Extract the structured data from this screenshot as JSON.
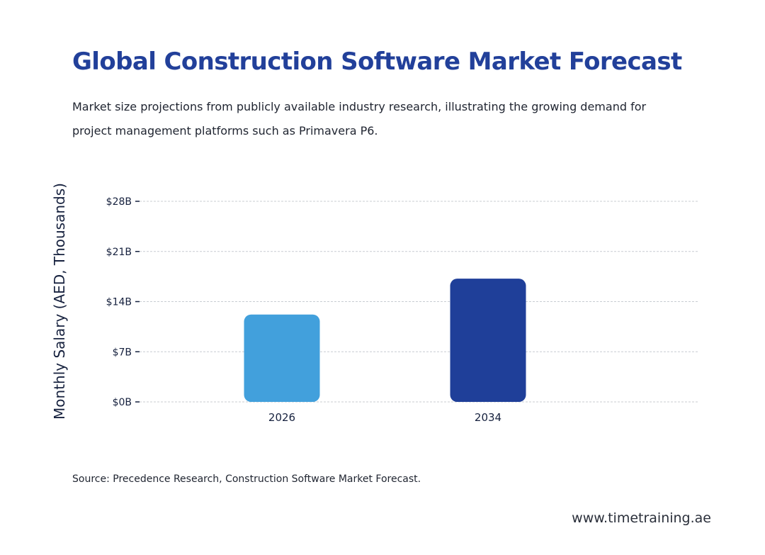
{
  "header": {
    "title": "Global Construction Software Market Forecast",
    "subtitle": "Market size projections from publicly available industry research, illustrating the growing demand for project management platforms such as Primavera P6."
  },
  "chart_data": {
    "type": "bar",
    "categories": [
      "2026",
      "2034"
    ],
    "values": [
      12.2,
      17.2
    ],
    "unit": "B",
    "ylabel": "Monthly Salary (AED, Thousands)",
    "xlabel": "",
    "ylim": [
      0,
      28
    ],
    "yticks": [
      0,
      7,
      14,
      21,
      28
    ],
    "ytick_labels": [
      "$0B",
      "$7B",
      "$14B",
      "$21B",
      "$28B"
    ],
    "grid": true,
    "bar_colors": [
      "#42a0dc",
      "#1f3f99"
    ]
  },
  "footer": {
    "source": "Source: Precedence Research, Construction Software Market Forecast.",
    "website": "www.timetraining.ae"
  },
  "colors": {
    "title": "#22409a",
    "gridline": "#c8ccd2",
    "axis_text": "#16213e"
  }
}
